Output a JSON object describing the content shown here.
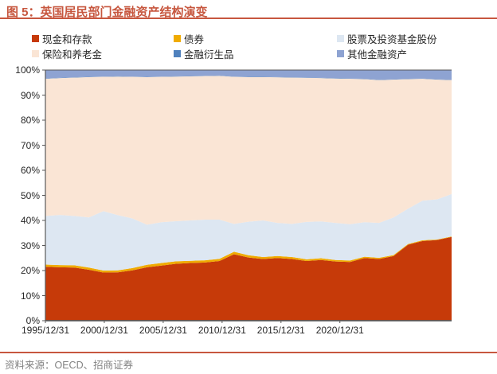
{
  "header": {
    "title": "图 5：英国居民部门金融资产结构演变"
  },
  "footer": {
    "source": "资料来源：OECD、招商证券"
  },
  "chart_data": {
    "type": "area",
    "stacked": true,
    "unit": "percent",
    "title": "英国居民部门金融资产结构演变",
    "legend_position": "top",
    "grid": false,
    "ylim": [
      0,
      100
    ],
    "y_tick_labels": [
      "100%",
      "90%",
      "80%",
      "70%",
      "60%",
      "50%",
      "40%",
      "30%",
      "20%",
      "10%",
      "0%"
    ],
    "x_tick_labels": [
      "1995/12/31",
      "2000/12/31",
      "2005/12/31",
      "2010/12/31",
      "2015/12/31",
      "2020/12/31"
    ],
    "x": [
      "1995/12/31",
      "1996/12/31",
      "1997/12/31",
      "1998/12/31",
      "1999/12/31",
      "2000/12/31",
      "2001/12/31",
      "2002/12/31",
      "2003/12/31",
      "2004/12/31",
      "2005/12/31",
      "2006/12/31",
      "2007/12/31",
      "2008/12/31",
      "2009/12/31",
      "2010/12/31",
      "2011/12/31",
      "2012/12/31",
      "2013/12/31",
      "2014/12/31",
      "2015/12/31",
      "2016/12/31",
      "2017/12/31",
      "2018/12/31",
      "2019/12/31",
      "2020/12/31",
      "2021/12/31",
      "2022/12/31",
      "2023/12/31"
    ],
    "series": [
      {
        "name": "现金和存款",
        "color": "#C63A09",
        "values": [
          21.5,
          21.3,
          21.2,
          20.3,
          19.2,
          19.3,
          20.1,
          21.3,
          22.0,
          22.7,
          23.0,
          23.2,
          23.8,
          26.5,
          25.2,
          24.6,
          25.0,
          24.6,
          23.8,
          24.2,
          23.6,
          23.4,
          25.0,
          24.6,
          25.8,
          30.3,
          31.8,
          32.2,
          33.4
        ]
      },
      {
        "name": "债券",
        "color": "#F0AB00",
        "values": [
          0.9,
          0.9,
          0.9,
          0.9,
          0.8,
          0.8,
          0.9,
          1.0,
          1.0,
          1.0,
          0.9,
          0.9,
          0.9,
          1.0,
          0.9,
          0.8,
          0.8,
          0.8,
          0.7,
          0.7,
          0.6,
          0.6,
          0.5,
          0.5,
          0.4,
          0.3,
          0.3,
          0.2,
          0.2
        ]
      },
      {
        "name": "股票及投资基金股份",
        "color": "#DDE7F2",
        "values": [
          19.4,
          20.0,
          19.7,
          20.0,
          23.7,
          22.0,
          19.8,
          16.0,
          16.3,
          16.0,
          16.1,
          16.2,
          15.6,
          11.1,
          13.4,
          14.6,
          13.2,
          13.2,
          14.9,
          14.7,
          14.8,
          14.5,
          13.8,
          13.9,
          15.0,
          14.1,
          15.8,
          16.0,
          16.9
        ]
      },
      {
        "name": "保险和养老金",
        "color": "#FAE5D5",
        "values": [
          54.7,
          54.6,
          55.2,
          56.0,
          53.6,
          55.3,
          56.5,
          58.9,
          58.0,
          57.7,
          57.5,
          57.3,
          57.4,
          58.7,
          57.7,
          57.2,
          58.1,
          58.4,
          57.5,
          57.2,
          57.6,
          58.0,
          57.1,
          57.0,
          55.0,
          51.7,
          48.6,
          47.8,
          45.5
        ]
      },
      {
        "name": "金融衍生品",
        "color": "#4F81BD",
        "values": [
          0.1,
          0.1,
          0.1,
          0.1,
          0.1,
          0.1,
          0.1,
          0.1,
          0.1,
          0.1,
          0.1,
          0.1,
          0.1,
          0.1,
          0.1,
          0.1,
          0.1,
          0.1,
          0.1,
          0.1,
          0.1,
          0.1,
          0.1,
          0.1,
          0.1,
          0.1,
          0.1,
          0.1,
          0.1
        ]
      },
      {
        "name": "其他金融资产",
        "color": "#8EA3D2",
        "values": [
          3.4,
          3.1,
          2.9,
          2.7,
          2.6,
          2.5,
          2.6,
          2.7,
          2.6,
          2.5,
          2.4,
          2.3,
          2.2,
          2.6,
          2.7,
          2.7,
          2.8,
          2.9,
          3.0,
          3.1,
          3.3,
          3.4,
          3.5,
          3.9,
          3.7,
          3.5,
          3.4,
          3.7,
          3.9
        ]
      }
    ],
    "accent_colors": {
      "title_text": "#C7573F",
      "divider": "#C7573F",
      "axis_line": "#595959",
      "axis_text": "#262626",
      "source_text": "#828282"
    }
  }
}
